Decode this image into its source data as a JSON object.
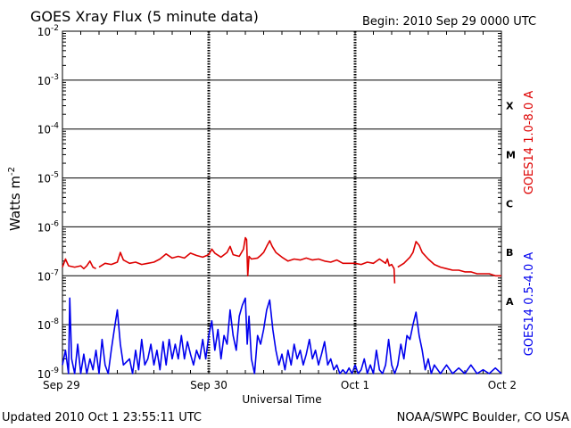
{
  "header": {
    "title": "GOES Xray Flux (5 minute data)",
    "begin": "Begin:  2010 Sep 29 0000 UTC"
  },
  "footer": {
    "updated": "Updated 2010 Oct  1 23:55:11 UTC",
    "source": "NOAA/SWPC Boulder, CO USA"
  },
  "chart_data": {
    "type": "line",
    "title": "GOES Xray Flux (5 minute data)",
    "xlabel": "Universal Time",
    "ylabel": "Watts m",
    "ylabel_sup": "-2",
    "yscale": "log",
    "ylim": [
      1e-09,
      0.01
    ],
    "xlim": [
      0,
      72
    ],
    "x_unit": "hours since 2010 Sep 29 0000 UTC",
    "y_ticks": [
      {
        "base": "10",
        "exp": "-2",
        "value": 0.01
      },
      {
        "base": "10",
        "exp": "-3",
        "value": 0.001
      },
      {
        "base": "10",
        "exp": "-4",
        "value": 0.0001
      },
      {
        "base": "10",
        "exp": "-5",
        "value": 1e-05
      },
      {
        "base": "10",
        "exp": "-6",
        "value": 1e-06
      },
      {
        "base": "10",
        "exp": "-7",
        "value": 1e-07
      },
      {
        "base": "10",
        "exp": "-8",
        "value": 1e-08
      },
      {
        "base": "10",
        "exp": "-9",
        "value": 1e-09
      }
    ],
    "x_ticks": [
      {
        "label": "Sep 29",
        "x": 0
      },
      {
        "label": "Sep 30",
        "x": 24
      },
      {
        "label": "Oct 1",
        "x": 48
      },
      {
        "label": "Oct 2",
        "x": 72
      }
    ],
    "flare_classes": [
      {
        "label": "X",
        "value": 0.0003
      },
      {
        "label": "M",
        "value": 3e-05
      },
      {
        "label": "C",
        "value": 3e-06
      },
      {
        "label": "B",
        "value": 3e-07
      },
      {
        "label": "A",
        "value": 3e-08
      }
    ],
    "grid": true,
    "series": [
      {
        "name": "GOES14 1.0-8.0 A",
        "color": "#dd0000",
        "points": [
          [
            0,
            1.5e-07
          ],
          [
            0.5,
            2.2e-07
          ],
          [
            1,
            1.6e-07
          ],
          [
            2,
            1.5e-07
          ],
          [
            3,
            1.6e-07
          ],
          [
            3.5,
            1.4e-07
          ],
          [
            4,
            1.6e-07
          ],
          [
            4.5,
            2e-07
          ],
          [
            5,
            1.5e-07
          ],
          [
            5.5,
            1.4e-07
          ],
          [
            5.6,
            null
          ],
          [
            6,
            1.5e-07
          ],
          [
            7,
            1.8e-07
          ],
          [
            8,
            1.7e-07
          ],
          [
            9,
            1.9e-07
          ],
          [
            9.5,
            3e-07
          ],
          [
            10,
            2.1e-07
          ],
          [
            11,
            1.8e-07
          ],
          [
            12,
            1.9e-07
          ],
          [
            13,
            1.7e-07
          ],
          [
            14,
            1.8e-07
          ],
          [
            15,
            1.9e-07
          ],
          [
            16,
            2.2e-07
          ],
          [
            17,
            2.8e-07
          ],
          [
            18,
            2.3e-07
          ],
          [
            19,
            2.5e-07
          ],
          [
            20,
            2.3e-07
          ],
          [
            21,
            2.9e-07
          ],
          [
            22,
            2.6e-07
          ],
          [
            23,
            2.4e-07
          ],
          [
            24,
            2.7e-07
          ],
          [
            24.5,
            3.5e-07
          ],
          [
            25,
            2.9e-07
          ],
          [
            26,
            2.4e-07
          ],
          [
            27,
            3e-07
          ],
          [
            27.5,
            4e-07
          ],
          [
            28,
            2.7e-07
          ],
          [
            29,
            2.5e-07
          ],
          [
            29.7,
            3.5e-07
          ],
          [
            30,
            6e-07
          ],
          [
            30.2,
            5.5e-07
          ],
          [
            30.4,
            1e-07
          ],
          [
            30.6,
            2.5e-07
          ],
          [
            31,
            2.2e-07
          ],
          [
            32,
            2.3e-07
          ],
          [
            32.5,
            2.6e-07
          ],
          [
            33,
            3e-07
          ],
          [
            33.5,
            4e-07
          ],
          [
            34,
            5.2e-07
          ],
          [
            34.4,
            4e-07
          ],
          [
            35,
            3e-07
          ],
          [
            36,
            2.4e-07
          ],
          [
            37,
            2e-07
          ],
          [
            38,
            2.2e-07
          ],
          [
            39,
            2.1e-07
          ],
          [
            40,
            2.3e-07
          ],
          [
            41,
            2.1e-07
          ],
          [
            42,
            2.2e-07
          ],
          [
            43,
            2e-07
          ],
          [
            44,
            1.9e-07
          ],
          [
            45,
            2.1e-07
          ],
          [
            46,
            1.8e-07
          ],
          [
            47,
            1.8e-07
          ],
          [
            48,
            1.8e-07
          ],
          [
            49,
            1.7e-07
          ],
          [
            50,
            1.9e-07
          ],
          [
            51,
            1.8e-07
          ],
          [
            52,
            2.2e-07
          ],
          [
            53,
            1.8e-07
          ],
          [
            53.3,
            2.2e-07
          ],
          [
            53.6,
            1.6e-07
          ],
          [
            54,
            1.7e-07
          ],
          [
            54.4,
            1.4e-07
          ],
          [
            54.5,
            7e-08
          ],
          [
            54.6,
            null
          ],
          [
            55,
            1.5e-07
          ],
          [
            56,
            1.8e-07
          ],
          [
            57,
            2.4e-07
          ],
          [
            57.5,
            3e-07
          ],
          [
            58,
            5e-07
          ],
          [
            58.5,
            4.2e-07
          ],
          [
            59,
            3e-07
          ],
          [
            60,
            2.2e-07
          ],
          [
            61,
            1.7e-07
          ],
          [
            62,
            1.5e-07
          ],
          [
            63,
            1.4e-07
          ],
          [
            64,
            1.3e-07
          ],
          [
            65,
            1.3e-07
          ],
          [
            66,
            1.2e-07
          ],
          [
            67,
            1.2e-07
          ],
          [
            68,
            1.1e-07
          ],
          [
            69,
            1.1e-07
          ],
          [
            70,
            1.1e-07
          ],
          [
            71,
            1e-07
          ],
          [
            72,
            1e-07
          ]
        ]
      },
      {
        "name": "GOES14 0.5-4.0 A",
        "color": "#0000ee",
        "points": [
          [
            0,
            1.5e-09
          ],
          [
            0.5,
            3e-09
          ],
          [
            1,
            1e-09
          ],
          [
            1.2,
            3.5e-08
          ],
          [
            1.5,
            2e-09
          ],
          [
            2,
            1e-09
          ],
          [
            2.5,
            4e-09
          ],
          [
            3,
            1e-09
          ],
          [
            3.5,
            2.5e-09
          ],
          [
            4,
            1e-09
          ],
          [
            4.5,
            2e-09
          ],
          [
            5,
            1.2e-09
          ],
          [
            5.5,
            3e-09
          ],
          [
            6,
            1e-09
          ],
          [
            6.5,
            5e-09
          ],
          [
            7,
            1.5e-09
          ],
          [
            7.5,
            1e-09
          ],
          [
            8,
            3e-09
          ],
          [
            8.5,
            8e-09
          ],
          [
            9,
            2e-08
          ],
          [
            9.5,
            4e-09
          ],
          [
            10,
            1.5e-09
          ],
          [
            11,
            2e-09
          ],
          [
            11.5,
            1e-09
          ],
          [
            12,
            3e-09
          ],
          [
            12.5,
            1.2e-09
          ],
          [
            13,
            5e-09
          ],
          [
            13.5,
            1.5e-09
          ],
          [
            14,
            2e-09
          ],
          [
            14.5,
            4e-09
          ],
          [
            15,
            1.5e-09
          ],
          [
            15.5,
            3e-09
          ],
          [
            16,
            1.2e-09
          ],
          [
            16.5,
            4.5e-09
          ],
          [
            17,
            1.5e-09
          ],
          [
            17.5,
            5e-09
          ],
          [
            18,
            2e-09
          ],
          [
            18.5,
            4e-09
          ],
          [
            19,
            2e-09
          ],
          [
            19.5,
            6e-09
          ],
          [
            20,
            2e-09
          ],
          [
            20.5,
            4.5e-09
          ],
          [
            21,
            2.5e-09
          ],
          [
            21.5,
            1.5e-09
          ],
          [
            22,
            3e-09
          ],
          [
            22.5,
            2e-09
          ],
          [
            23,
            5e-09
          ],
          [
            23.5,
            2e-09
          ],
          [
            24,
            6e-09
          ],
          [
            24.5,
            1.2e-08
          ],
          [
            25,
            3e-09
          ],
          [
            25.5,
            8e-09
          ],
          [
            26,
            2e-09
          ],
          [
            26.5,
            6e-09
          ],
          [
            27,
            4e-09
          ],
          [
            27.5,
            2e-08
          ],
          [
            28,
            6e-09
          ],
          [
            28.5,
            3e-09
          ],
          [
            29,
            1.5e-08
          ],
          [
            29.5,
            2.5e-08
          ],
          [
            30,
            3.5e-08
          ],
          [
            30.3,
            4e-09
          ],
          [
            30.6,
            1.5e-08
          ],
          [
            31,
            2e-09
          ],
          [
            31.5,
            1e-09
          ],
          [
            32,
            6e-09
          ],
          [
            32.5,
            4e-09
          ],
          [
            33,
            8e-09
          ],
          [
            33.5,
            2e-08
          ],
          [
            34,
            3.2e-08
          ],
          [
            34.5,
            8e-09
          ],
          [
            35,
            3e-09
          ],
          [
            35.5,
            1.5e-09
          ],
          [
            36,
            2.5e-09
          ],
          [
            36.5,
            1.2e-09
          ],
          [
            37,
            3e-09
          ],
          [
            37.5,
            1.5e-09
          ],
          [
            38,
            4e-09
          ],
          [
            38.5,
            2e-09
          ],
          [
            39,
            3e-09
          ],
          [
            39.5,
            1.5e-09
          ],
          [
            40,
            2.5e-09
          ],
          [
            40.5,
            5e-09
          ],
          [
            41,
            2e-09
          ],
          [
            41.5,
            3e-09
          ],
          [
            42,
            1.5e-09
          ],
          [
            42.5,
            2.5e-09
          ],
          [
            43,
            4.5e-09
          ],
          [
            43.5,
            1.5e-09
          ],
          [
            44,
            2e-09
          ],
          [
            44.5,
            1.2e-09
          ],
          [
            45,
            1.5e-09
          ],
          [
            45.5,
            1e-09
          ],
          [
            46,
            1.2e-09
          ],
          [
            46.5,
            1e-09
          ],
          [
            47,
            1.3e-09
          ],
          [
            47.5,
            1e-09
          ],
          [
            48,
            1.5e-09
          ],
          [
            48.5,
            1e-09
          ],
          [
            49,
            1.2e-09
          ],
          [
            49.5,
            2e-09
          ],
          [
            50,
            1e-09
          ],
          [
            50.5,
            1.5e-09
          ],
          [
            51,
            1e-09
          ],
          [
            51.5,
            3e-09
          ],
          [
            52,
            1.2e-09
          ],
          [
            52.5,
            1e-09
          ],
          [
            53,
            1.5e-09
          ],
          [
            53.5,
            5e-09
          ],
          [
            54,
            1.5e-09
          ],
          [
            54.5,
            1e-09
          ],
          [
            55,
            1.5e-09
          ],
          [
            55.5,
            4e-09
          ],
          [
            56,
            2e-09
          ],
          [
            56.5,
            6e-09
          ],
          [
            57,
            5e-09
          ],
          [
            57.5,
            1e-08
          ],
          [
            58,
            1.8e-08
          ],
          [
            58.5,
            6e-09
          ],
          [
            59,
            3e-09
          ],
          [
            59.5,
            1.2e-09
          ],
          [
            60,
            2e-09
          ],
          [
            60.5,
            1e-09
          ],
          [
            61,
            1.5e-09
          ],
          [
            62,
            1e-09
          ],
          [
            63,
            1.5e-09
          ],
          [
            64,
            1e-09
          ],
          [
            65,
            1.3e-09
          ],
          [
            66,
            1e-09
          ],
          [
            67,
            1.5e-09
          ],
          [
            68,
            1e-09
          ],
          [
            69,
            1.2e-09
          ],
          [
            70,
            1e-09
          ],
          [
            71,
            1.3e-09
          ],
          [
            72,
            1e-09
          ]
        ]
      }
    ]
  }
}
